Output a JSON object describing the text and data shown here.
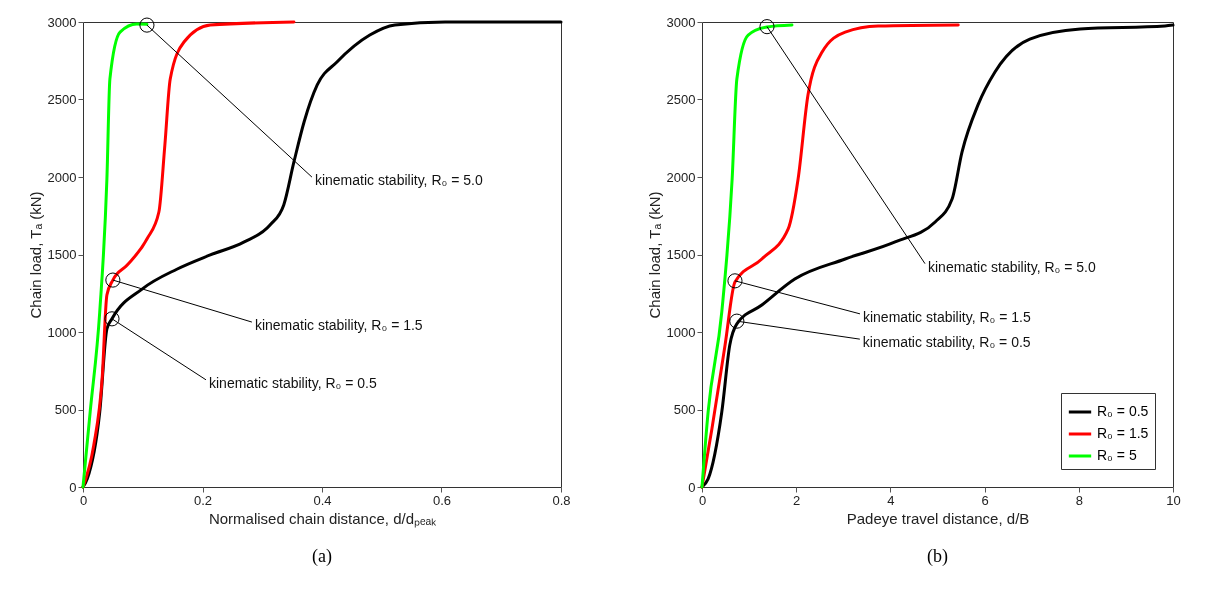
{
  "chart_data": [
    {
      "type": "line",
      "title": "(a)",
      "xlabel": "Normalised chain distance, d/dₚₑₐₖ",
      "ylabel": "Chain load, Tₐ (kN)",
      "xlim": [
        0,
        0.8
      ],
      "xticks": [
        0,
        0.2,
        0.4,
        0.6,
        0.8
      ],
      "ylim": [
        0,
        3000
      ],
      "yticks": [
        0,
        500,
        1000,
        1500,
        2000,
        2500,
        3000
      ],
      "grid": false,
      "legend": false,
      "line_style": "solid",
      "series": [
        {
          "color": "#000000",
          "x": [
            0,
            0.007,
            0.028,
            0.04,
            0.0485,
            0.1,
            0.157,
            0.213,
            0.269,
            0.313,
            0.336,
            0.353,
            0.37,
            0.392,
            0.425,
            0.48,
            0.522,
            0.606,
            0.8
          ],
          "values": [
            0,
            52,
            484,
            1020,
            1085,
            1280,
            1405,
            1497,
            1580,
            1690,
            1820,
            2097,
            2355,
            2594,
            2742,
            2916,
            2981,
            3000,
            3000
          ]
        },
        {
          "color": "#ff0000",
          "x": [
            0,
            0.018,
            0.032,
            0.04,
            0.05,
            0.074,
            0.107,
            0.127,
            0.137,
            0.146,
            0.169,
            0.213,
            0.353
          ],
          "values": [
            0,
            270,
            697,
            1239,
            1335,
            1432,
            1600,
            1774,
            2206,
            2632,
            2871,
            2981,
            3000
          ]
        },
        {
          "color": "#00ff00",
          "x": [
            0,
            0.012,
            0.028,
            0.04,
            0.045,
            0.062,
            0.09,
            0.107
          ],
          "values": [
            0,
            484,
            1129,
            1987,
            2632,
            2935,
            2987,
            2985
          ]
        }
      ],
      "annotations": [
        {
          "text": "kinematic stability, R₀ = 5.0",
          "x": 0.107,
          "y": 2980
        },
        {
          "text": "kinematic stability, R₀ = 1.5",
          "x": 0.05,
          "y": 1335
        },
        {
          "text": "kinematic stability, R₀ = 0.5",
          "x": 0.0485,
          "y": 1085
        }
      ]
    },
    {
      "type": "line",
      "title": "(b)",
      "xlabel": "Padeye travel distance, d/B",
      "ylabel": "Chain load, Tₐ (kN)",
      "xlim": [
        0,
        10
      ],
      "xticks": [
        0,
        2,
        4,
        6,
        8,
        10
      ],
      "ylim": [
        0,
        3000
      ],
      "yticks": [
        0,
        500,
        1000,
        1500,
        2000,
        2500,
        3000
      ],
      "grid": false,
      "legend": "bottom right",
      "line_style": "solid",
      "series": [
        {
          "name": "R₀ = 0.5",
          "color": "#000000",
          "x": [
            0,
            0.13,
            0.42,
            0.59,
            0.74,
            1.27,
            1.97,
            3.04,
            4.1,
            4.95,
            5.31,
            5.52,
            5.86,
            6.22,
            6.96,
            8.03,
            9.83,
            10
          ],
          "values": [
            0,
            52,
            484,
            916,
            1052,
            1174,
            1342,
            1471,
            1581,
            1710,
            1858,
            2161,
            2465,
            2677,
            2890,
            2955,
            2974,
            2980
          ]
        },
        {
          "name": "R₀ = 1.5",
          "color": "#ff0000",
          "x": [
            0,
            0.21,
            0.49,
            0.7,
            1.27,
            1.83,
            2.04,
            2.25,
            2.55,
            3.04,
            3.74,
            5.44
          ],
          "values": [
            0,
            374,
            916,
            1323,
            1471,
            1665,
            1987,
            2529,
            2806,
            2935,
            2974,
            2981
          ]
        },
        {
          "name": "R₀ = 5",
          "color": "#00ff00",
          "x": [
            0,
            0.13,
            0.42,
            0.64,
            0.74,
            0.98,
            1.38,
            1.91
          ],
          "values": [
            0,
            484,
            1129,
            1987,
            2632,
            2916,
            2968,
            2981
          ]
        }
      ],
      "annotations": [
        {
          "text": "kinematic stability, R₀ = 5.0",
          "x": 1.38,
          "y": 2970
        },
        {
          "text": "kinematic stability, R₀ = 1.5",
          "x": 0.7,
          "y": 1330
        },
        {
          "text": "kinematic stability, R₀ = 0.5",
          "x": 0.74,
          "y": 1070
        }
      ]
    }
  ]
}
